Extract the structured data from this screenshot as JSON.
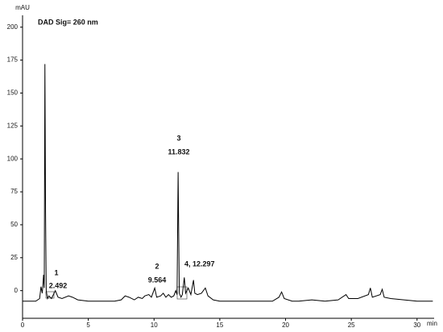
{
  "chart_data": {
    "type": "line",
    "title": "DAD Sig= 260 nm",
    "y_label": "mAU",
    "x_label": "min",
    "x": [
      0,
      0.5,
      1.0,
      1.3,
      1.4,
      1.5,
      1.55,
      1.6,
      1.65,
      1.7,
      1.75,
      1.8,
      1.9,
      2.0,
      2.2,
      2.49,
      2.7,
      3.0,
      3.5,
      3.8,
      4.2,
      5,
      6,
      7,
      7.5,
      7.8,
      8.1,
      8.5,
      8.8,
      9.1,
      9.3,
      9.6,
      9.8,
      10.05,
      10.2,
      10.5,
      10.7,
      10.9,
      11.1,
      11.3,
      11.5,
      11.65,
      11.75,
      11.83,
      11.92,
      12.05,
      12.15,
      12.3,
      12.4,
      12.6,
      12.8,
      13.0,
      13.1,
      13.3,
      13.6,
      13.9,
      14.1,
      14.5,
      15,
      16,
      17,
      18,
      19,
      19.5,
      19.7,
      19.9,
      20.5,
      21,
      22,
      23,
      24,
      24.6,
      24.8,
      25.5,
      26.3,
      26.45,
      26.6,
      27.2,
      27.35,
      27.5,
      28,
      29,
      30,
      31.2
    ],
    "values": [
      -8,
      -8,
      -8,
      -6,
      3,
      -2,
      5,
      12,
      2,
      172,
      60,
      0,
      -6,
      -4,
      -6,
      0,
      -5,
      -6,
      -4,
      -5,
      -7,
      -8,
      -8,
      -8,
      -7,
      -4,
      -5,
      -7,
      -5,
      -6,
      -4,
      -3,
      -5,
      2,
      -5,
      -4,
      -2,
      -5,
      -3,
      -5,
      -4,
      0,
      -3,
      90,
      -2,
      -5,
      -3,
      10,
      -2,
      2,
      -3,
      8,
      -2,
      -3,
      -2,
      2,
      -4,
      -7,
      -8,
      -8,
      -8,
      -8,
      -8,
      -5,
      -1,
      -6,
      -8,
      -8,
      -7,
      -8,
      -7,
      -3,
      -6,
      -6,
      -3,
      2,
      -5,
      -3,
      1,
      -5,
      -6,
      -7,
      -8,
      -8
    ],
    "color": "#000000",
    "xlim": [
      0,
      31.3
    ],
    "ylim": [
      -21,
      209
    ],
    "xticks": [
      0,
      5,
      10,
      15,
      20,
      25,
      30
    ],
    "yticks": [
      0,
      25,
      50,
      75,
      100,
      125,
      150,
      175,
      200
    ],
    "peaks": [
      {
        "number": "1",
        "retention_time": "2.492"
      },
      {
        "number": "2",
        "retention_time": "9.564"
      },
      {
        "number": "3",
        "retention_time": "11.832"
      },
      {
        "number": "4, 12.297"
      }
    ]
  }
}
